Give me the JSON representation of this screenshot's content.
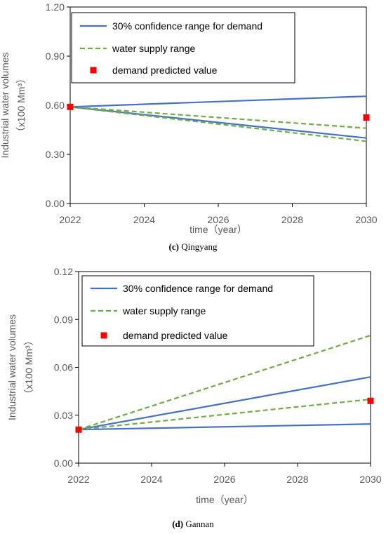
{
  "chart_data": [
    {
      "type": "line",
      "caption_letter": "(c)",
      "caption_text": " Qingyang",
      "xlabel": "time（year）",
      "ylabel_line1": "Industrial water volumes",
      "ylabel_line2": "（x100 Mm³）",
      "xlim": [
        2022,
        2030
      ],
      "ylim": [
        0,
        1.2
      ],
      "xticks": [
        2022,
        2024,
        2026,
        2028,
        2030
      ],
      "xtick_labels": [
        "2022",
        "2024",
        "2026",
        "2028",
        "2030"
      ],
      "yticks": [
        0,
        0.3,
        0.6,
        0.9,
        1.2
      ],
      "ytick_labels": [
        "0.00",
        "0.30",
        "0.60",
        "0.90",
        "1.20"
      ],
      "legend_position": "top-left",
      "legend": [
        "30% confidence range for demand",
        "water supply range",
        "demand predicted value"
      ],
      "series": [
        {
          "role": "demand",
          "style": "solid",
          "color": "#4472C4",
          "x": [
            2022,
            2030
          ],
          "y": [
            0.59,
            0.655
          ]
        },
        {
          "role": "demand",
          "style": "solid",
          "color": "#4472C4",
          "x": [
            2022,
            2030
          ],
          "y": [
            0.59,
            0.4
          ]
        },
        {
          "role": "supply",
          "style": "dashed",
          "color": "#70AD47",
          "x": [
            2022,
            2030
          ],
          "y": [
            0.59,
            0.46
          ]
        },
        {
          "role": "supply",
          "style": "dashed",
          "color": "#70AD47",
          "x": [
            2022,
            2030
          ],
          "y": [
            0.59,
            0.38
          ]
        },
        {
          "role": "predicted",
          "style": "marker",
          "color": "#FF0000",
          "x": [
            2022,
            2030
          ],
          "y": [
            0.59,
            0.525
          ]
        }
      ]
    },
    {
      "type": "line",
      "caption_letter": "(d)",
      "caption_text": " Gannan",
      "xlabel": "time（year）",
      "ylabel_line1": "Industrial water volumes",
      "ylabel_line2": "（x100 Mm³）",
      "xlim": [
        2022,
        2030
      ],
      "ylim": [
        0,
        0.12
      ],
      "xticks": [
        2022,
        2024,
        2026,
        2028,
        2030
      ],
      "xtick_labels": [
        "2022",
        "2024",
        "2026",
        "2028",
        "2030"
      ],
      "yticks": [
        0,
        0.03,
        0.06,
        0.09,
        0.12
      ],
      "ytick_labels": [
        "0.00",
        "0.03",
        "0.06",
        "0.09",
        "0.12"
      ],
      "legend_position": "top-left",
      "legend": [
        "30% confidence range for demand",
        "water supply range",
        "demand predicted value"
      ],
      "series": [
        {
          "role": "demand",
          "style": "solid",
          "color": "#4472C4",
          "x": [
            2022,
            2030
          ],
          "y": [
            0.021,
            0.054
          ]
        },
        {
          "role": "demand",
          "style": "solid",
          "color": "#4472C4",
          "x": [
            2022,
            2030
          ],
          "y": [
            0.021,
            0.0245
          ]
        },
        {
          "role": "supply",
          "style": "dashed",
          "color": "#70AD47",
          "x": [
            2022,
            2030
          ],
          "y": [
            0.021,
            0.08
          ]
        },
        {
          "role": "supply",
          "style": "dashed",
          "color": "#70AD47",
          "x": [
            2022,
            2030
          ],
          "y": [
            0.021,
            0.04
          ]
        },
        {
          "role": "predicted",
          "style": "marker",
          "color": "#FF0000",
          "x": [
            2022,
            2030
          ],
          "y": [
            0.021,
            0.039
          ]
        }
      ]
    }
  ]
}
